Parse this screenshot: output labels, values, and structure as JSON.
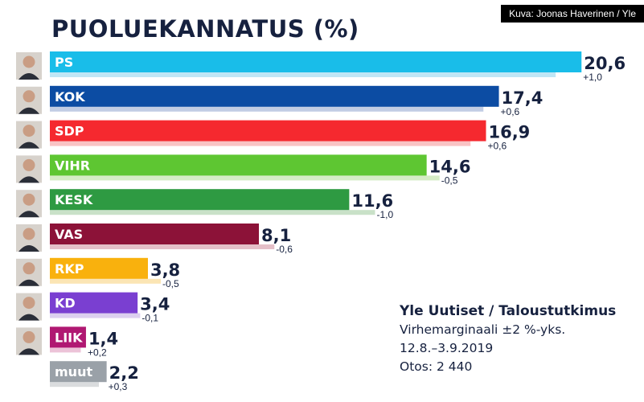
{
  "credit": "Kuva: Joonas Haverinen / Yle",
  "title": "PUOLUEKANNATUS (%)",
  "source": {
    "title": "Yle Uutiset / Taloustutkimus",
    "lines": [
      "Virhemarginaali ±2 %-yks.",
      "12.8.–3.9.2019",
      "Otos: 2 440"
    ]
  },
  "chart_data": {
    "type": "bar",
    "orientation": "horizontal",
    "title": "PUOLUEKANNATUS (%)",
    "categories": [
      "PS",
      "KOK",
      "SDP",
      "VIHR",
      "KESK",
      "VAS",
      "RKP",
      "KD",
      "LIIK",
      "muut"
    ],
    "values": [
      20.6,
      17.4,
      16.9,
      14.6,
      11.6,
      8.1,
      3.8,
      3.4,
      1.4,
      2.2
    ],
    "value_labels": [
      "20,6",
      "17,4",
      "16,9",
      "14,6",
      "11,6",
      "8,1",
      "3,8",
      "3,4",
      "1,4",
      "2,2"
    ],
    "previous_values": [
      19.6,
      16.8,
      16.3,
      15.1,
      12.6,
      8.7,
      4.3,
      3.5,
      1.2,
      1.9
    ],
    "changes": [
      "+1,0",
      "+0,6",
      "+0,6",
      "-0,5",
      "-1,0",
      "-0,6",
      "-0,5",
      "-0,1",
      "+0,2",
      "+0,3"
    ],
    "colors": [
      "#19bde9",
      "#0c4ca3",
      "#f5292f",
      "#5ec632",
      "#2e9a42",
      "#8c1238",
      "#f9b10d",
      "#7a3fd1",
      "#b01872",
      "#9aa1a8"
    ],
    "prev_colors": [
      "#bfe6f5",
      "#c2cde4",
      "#f9c3c4",
      "#d5ecc5",
      "#c9e1c8",
      "#e4bfc8",
      "#fbe5b4",
      "#dccfef",
      "#ecc3d8",
      "#dadcde"
    ],
    "has_photo": [
      true,
      true,
      true,
      true,
      true,
      true,
      true,
      true,
      true,
      false
    ],
    "legend": "none",
    "grid": false
  }
}
